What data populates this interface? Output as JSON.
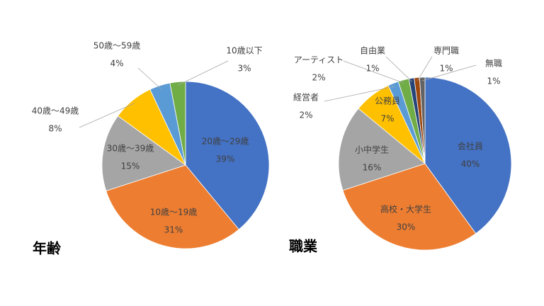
{
  "chart_data": [
    {
      "type": "pie",
      "title": "年齢",
      "categories": [
        "20歳～29歳",
        "10歳～19歳",
        "30歳～39歳",
        "40歳～49歳",
        "50歳～59歳",
        "10歳以下"
      ],
      "values": [
        39,
        31,
        15,
        8,
        4,
        3
      ],
      "value_labels": [
        "39%",
        "31%",
        "15%",
        "8%",
        "4%",
        "3%"
      ],
      "colors": [
        "#4472c4",
        "#ed7d31",
        "#a5a5a5",
        "#ffc000",
        "#5b9bd5",
        "#70ad47"
      ]
    },
    {
      "type": "pie",
      "title": "職業",
      "categories": [
        "会社員",
        "高校・大学生",
        "小中学生",
        "公務員",
        "経営者",
        "アーティスト",
        "自由業",
        "専門職",
        "無職"
      ],
      "values": [
        40,
        30,
        16,
        7,
        2,
        2,
        1,
        1,
        1
      ],
      "value_labels": [
        "40%",
        "30%",
        "16%",
        "7%",
        "2%",
        "2%",
        "1%",
        "1%",
        "1%"
      ],
      "colors": [
        "#4472c4",
        "#ed7d31",
        "#a5a5a5",
        "#ffc000",
        "#5b9bd5",
        "#70ad47",
        "#264478",
        "#9e480e",
        "#636363"
      ]
    }
  ]
}
